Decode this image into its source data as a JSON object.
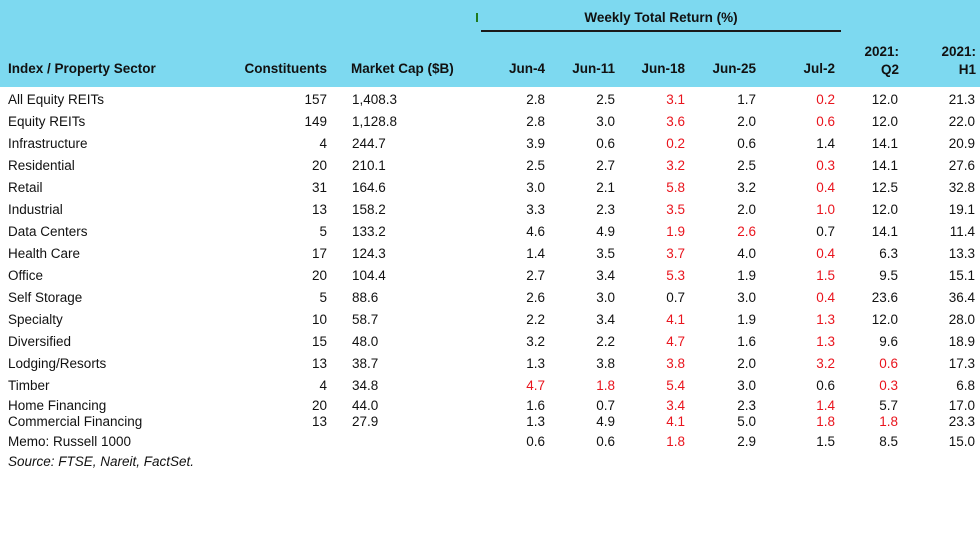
{
  "colors": {
    "header_bg": "#7DD9F0",
    "negative_value_red": "#E9141D",
    "text": "#111111",
    "tick_green": "#1E7A1E"
  },
  "icons": {
    "stray_tick": "apostrophe-artifact"
  },
  "header": {
    "weekly_title": "Weekly Total Return (%)",
    "col_sector": "Index / Property Sector",
    "col_constituents": "Constituents",
    "col_market_cap": "Market Cap ($B)",
    "week_cols": [
      "Jun-4",
      "Jun-11",
      "Jun-18",
      "Jun-25",
      "Jul-2"
    ],
    "period_cols": [
      {
        "line1": "2021:",
        "line2": "Q2"
      },
      {
        "line1": "2021:",
        "line2": "H1"
      }
    ]
  },
  "rows": [
    {
      "sector": "All Equity REITs",
      "constituents": "157",
      "market_cap": "1,408.3",
      "returns": [
        "2.8",
        "2.5",
        "3.1",
        "1.7",
        "0.2",
        "12.0",
        "21.3"
      ],
      "red_indices": [
        2,
        4
      ]
    },
    {
      "sector": "Equity REITs",
      "constituents": "149",
      "market_cap": "1,128.8",
      "returns": [
        "2.8",
        "3.0",
        "3.6",
        "2.0",
        "0.6",
        "12.0",
        "22.0"
      ],
      "red_indices": [
        2,
        4
      ]
    },
    {
      "sector": "Infrastructure",
      "constituents": "4",
      "market_cap": "244.7",
      "returns": [
        "3.9",
        "0.6",
        "0.2",
        "0.6",
        "1.4",
        "14.1",
        "20.9"
      ],
      "red_indices": [
        2
      ]
    },
    {
      "sector": "Residential",
      "constituents": "20",
      "market_cap": "210.1",
      "returns": [
        "2.5",
        "2.7",
        "3.2",
        "2.5",
        "0.3",
        "14.1",
        "27.6"
      ],
      "red_indices": [
        2,
        4
      ]
    },
    {
      "sector": "Retail",
      "constituents": "31",
      "market_cap": "164.6",
      "returns": [
        "3.0",
        "2.1",
        "5.8",
        "3.2",
        "0.4",
        "12.5",
        "32.8"
      ],
      "red_indices": [
        2,
        4
      ]
    },
    {
      "sector": "Industrial",
      "constituents": "13",
      "market_cap": "158.2",
      "returns": [
        "3.3",
        "2.3",
        "3.5",
        "2.0",
        "1.0",
        "12.0",
        "19.1"
      ],
      "red_indices": [
        2,
        4
      ]
    },
    {
      "sector": "Data Centers",
      "constituents": "5",
      "market_cap": "133.2",
      "returns": [
        "4.6",
        "4.9",
        "1.9",
        "2.6",
        "0.7",
        "14.1",
        "11.4"
      ],
      "red_indices": [
        2,
        3
      ]
    },
    {
      "sector": "Health Care",
      "constituents": "17",
      "market_cap": "124.3",
      "returns": [
        "1.4",
        "3.5",
        "3.7",
        "4.0",
        "0.4",
        "6.3",
        "13.3"
      ],
      "red_indices": [
        2,
        4
      ]
    },
    {
      "sector": "Office",
      "constituents": "20",
      "market_cap": "104.4",
      "returns": [
        "2.7",
        "3.4",
        "5.3",
        "1.9",
        "1.5",
        "9.5",
        "15.1"
      ],
      "red_indices": [
        2,
        4
      ]
    },
    {
      "sector": "Self Storage",
      "constituents": "5",
      "market_cap": "88.6",
      "returns": [
        "2.6",
        "3.0",
        "0.7",
        "3.0",
        "0.4",
        "23.6",
        "36.4"
      ],
      "red_indices": [
        4
      ]
    },
    {
      "sector": "Specialty",
      "constituents": "10",
      "market_cap": "58.7",
      "returns": [
        "2.2",
        "3.4",
        "4.1",
        "1.9",
        "1.3",
        "12.0",
        "28.0"
      ],
      "red_indices": [
        2,
        4
      ]
    },
    {
      "sector": "Diversified",
      "constituents": "15",
      "market_cap": "48.0",
      "returns": [
        "3.2",
        "2.2",
        "4.7",
        "1.6",
        "1.3",
        "9.6",
        "18.9"
      ],
      "red_indices": [
        2,
        4
      ]
    },
    {
      "sector": "Lodging/Resorts",
      "constituents": "13",
      "market_cap": "38.7",
      "returns": [
        "1.3",
        "3.8",
        "3.8",
        "2.0",
        "3.2",
        "0.6",
        "17.3"
      ],
      "red_indices": [
        2,
        4,
        5
      ]
    },
    {
      "sector": "Timber",
      "constituents": "4",
      "market_cap": "34.8",
      "returns": [
        "4.7",
        "1.8",
        "5.4",
        "3.0",
        "0.6",
        "0.3",
        "6.8"
      ],
      "red_indices": [
        0,
        1,
        2,
        5
      ]
    },
    {
      "sector": "Home Financing",
      "constituents": "20",
      "market_cap": "44.0",
      "returns": [
        "1.6",
        "0.7",
        "3.4",
        "2.3",
        "1.4",
        "5.7",
        "17.0"
      ],
      "red_indices": [
        2,
        4
      ]
    },
    {
      "sector": "Commercial Financing",
      "constituents": "13",
      "market_cap": "27.9",
      "returns": [
        "1.3",
        "4.9",
        "4.1",
        "5.0",
        "1.8",
        "1.8",
        "23.3"
      ],
      "red_indices": [
        2,
        4,
        5
      ]
    },
    {
      "sector": "Memo: Russell 1000",
      "constituents": "",
      "market_cap": "",
      "returns": [
        "0.6",
        "0.6",
        "1.8",
        "2.9",
        "1.5",
        "8.5",
        "15.0"
      ],
      "red_indices": [
        2
      ]
    }
  ],
  "source": "Source: FTSE, Nareit, FactSet."
}
